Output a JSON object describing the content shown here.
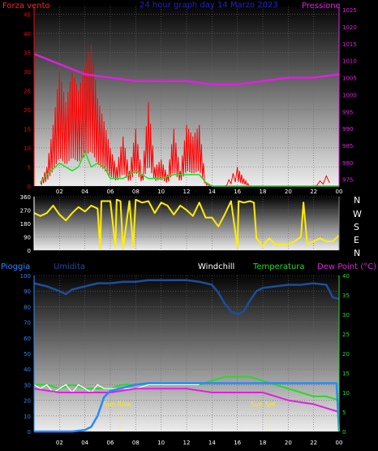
{
  "header": {
    "wind_label": "Forza vento",
    "title": "24 hour graph day  14 Marzo 2023",
    "pressure_label": "Pressione",
    "rain_label": "Pioggia",
    "humidity_label": "Umidita",
    "windchill_label": "Windchill",
    "temperature_label": "Temperatura",
    "dewpoint_label": "Dew Point (°C)",
    "compass": [
      "N",
      "W",
      "S",
      "E",
      "N"
    ]
  },
  "annotations": {
    "sunrise": "Sun Rise",
    "sunset": "Sun Set"
  },
  "colors": {
    "wind_gust": "#ff0000",
    "wind_avg": "#22dd22",
    "pressure": "#e020e0",
    "direction": "#ffee00",
    "rain": "#2a88ff",
    "humidity": "#1c4e9c",
    "temperature": "#22dd22",
    "windchill": "#ffffff",
    "dewpoint": "#e020e0",
    "title": "#2222cc"
  },
  "chart_data": [
    {
      "type": "line",
      "title": "24 hour graph day  14 Marzo 2023",
      "x_ticks": [
        "02",
        "04",
        "06",
        "08",
        "10",
        "12",
        "14",
        "16",
        "18",
        "20",
        "22",
        "00"
      ],
      "xlim": [
        0,
        24
      ],
      "ylabel": "Forza vento",
      "ylim": [
        0,
        47
      ],
      "y_ticks": [
        0,
        5,
        10,
        15,
        20,
        25,
        30,
        35,
        40,
        45
      ],
      "y2label": "Pressione",
      "y2lim": [
        973,
        1026
      ],
      "y2_ticks": [
        975,
        980,
        985,
        990,
        995,
        1000,
        1005,
        1010,
        1015,
        1020,
        1025
      ],
      "series": [
        {
          "name": "Forza vento",
          "kind": "gust",
          "x": [
            0.5,
            1,
            1.5,
            2,
            2.5,
            3,
            3.5,
            4,
            4.5,
            5,
            5.5,
            6,
            6.5,
            7,
            7.5,
            8,
            8.5,
            9,
            9.5,
            10,
            10.5,
            11,
            11.5,
            12,
            12.5,
            13,
            13.5,
            14,
            15,
            16,
            16.5,
            17,
            18,
            20,
            22,
            23.5
          ],
          "y": [
            1,
            5,
            16,
            30,
            22,
            30,
            25,
            31,
            37,
            23,
            17,
            10,
            5,
            13,
            4,
            15,
            3,
            22,
            5,
            7,
            3,
            15,
            4,
            16,
            13,
            16,
            1,
            0,
            0,
            5,
            2,
            0,
            0,
            0,
            0,
            4
          ]
        },
        {
          "name": "avg",
          "kind": "avg",
          "x": [
            0.5,
            1,
            2,
            3,
            3.5,
            4,
            4.5,
            5,
            5.5,
            6,
            7,
            8,
            9,
            10,
            11,
            12,
            13,
            13.5,
            14,
            24
          ],
          "y": [
            1,
            3,
            6,
            4,
            5,
            9,
            5,
            6,
            5,
            2,
            2,
            4,
            2,
            2,
            3,
            3,
            3,
            1,
            0,
            0
          ]
        },
        {
          "name": "Pressione",
          "axis": "y2",
          "x": [
            0,
            2,
            4,
            6,
            8,
            10,
            12,
            14,
            16,
            18,
            20,
            22,
            24
          ],
          "y": [
            1012,
            1009,
            1006,
            1005,
            1004,
            1004,
            1004,
            1003,
            1003,
            1004,
            1005,
            1005,
            1006
          ]
        }
      ]
    },
    {
      "type": "line",
      "xlim": [
        0,
        24
      ],
      "ylim": [
        0,
        360
      ],
      "y_ticks": [
        0,
        90,
        180,
        270,
        360
      ],
      "series": [
        {
          "name": "direction",
          "x": [
            0,
            0.5,
            1,
            1.5,
            2,
            2.5,
            3,
            3.5,
            4,
            4.5,
            5,
            5.2,
            5.3,
            6,
            6.4,
            6.5,
            6.8,
            7,
            7.5,
            7.8,
            8,
            8.5,
            9,
            9.5,
            10,
            10.5,
            11,
            11.5,
            12,
            12.5,
            13,
            13.5,
            14,
            14.5,
            15,
            15.5,
            16,
            16.1,
            16.5,
            17,
            17.3,
            17.5,
            18,
            18.5,
            19,
            19.5,
            20,
            20.5,
            21,
            21.2,
            21.5,
            22,
            22.5,
            23,
            23.5,
            24
          ],
          "y": [
            250,
            230,
            250,
            300,
            240,
            200,
            250,
            290,
            260,
            300,
            280,
            10,
            330,
            330,
            20,
            340,
            330,
            10,
            330,
            20,
            340,
            320,
            330,
            250,
            320,
            300,
            240,
            300,
            270,
            230,
            320,
            220,
            220,
            160,
            240,
            330,
            20,
            330,
            320,
            330,
            320,
            80,
            30,
            80,
            40,
            40,
            40,
            60,
            90,
            320,
            40,
            60,
            80,
            60,
            60,
            100
          ]
        }
      ]
    },
    {
      "type": "line",
      "xlim": [
        0,
        24
      ],
      "ylabel": "Pioggia / Umidita",
      "ylim": [
        0,
        100
      ],
      "y_ticks": [
        0,
        10,
        20,
        30,
        40,
        50,
        60,
        70,
        80,
        90,
        100
      ],
      "y2label": "Dew Point (°C)",
      "y2lim": [
        0,
        40
      ],
      "y2_ticks": [
        0,
        5,
        10,
        15,
        20,
        25,
        30,
        35,
        40
      ],
      "series": [
        {
          "name": "Pioggia",
          "axis": "y",
          "x": [
            0,
            1,
            2,
            3,
            4,
            4.5,
            5,
            5.5,
            6,
            7,
            8,
            9,
            10,
            11,
            12,
            13,
            14,
            16,
            18,
            20,
            22,
            23.8,
            24
          ],
          "y": [
            0,
            0,
            0,
            0,
            1,
            3,
            10,
            22,
            26,
            28,
            30,
            31,
            31,
            31,
            31,
            31,
            31,
            31,
            31,
            31,
            31,
            31,
            0
          ]
        },
        {
          "name": "Umidita",
          "axis": "y",
          "x": [
            0,
            1,
            2,
            2.5,
            3,
            4,
            5,
            6,
            7,
            8,
            9,
            10,
            11,
            12,
            13,
            14,
            14.5,
            15,
            15.5,
            16,
            16.5,
            17,
            17.5,
            18,
            19,
            20,
            21,
            22,
            23,
            23.5,
            24
          ],
          "y": [
            95,
            93,
            90,
            88,
            91,
            93,
            95,
            95,
            96,
            96,
            97,
            97,
            97,
            97,
            96,
            94,
            89,
            82,
            77,
            75,
            77,
            84,
            90,
            92,
            93,
            94,
            94,
            95,
            94,
            86,
            85
          ]
        },
        {
          "name": "Temperatura",
          "axis": "y2",
          "x": [
            0,
            1,
            2,
            3,
            4,
            5,
            6,
            7,
            8,
            9,
            10,
            11,
            12,
            13,
            14,
            15,
            16,
            17,
            18,
            19,
            20,
            21,
            22,
            23,
            24
          ],
          "y": [
            12,
            12,
            11,
            12,
            11,
            11,
            11,
            12,
            12,
            12,
            12,
            12,
            12,
            12,
            13,
            14,
            14,
            14,
            13,
            12,
            11,
            10,
            9,
            9,
            8
          ]
        },
        {
          "name": "Windchill",
          "axis": "y2",
          "x": [
            0,
            0.5,
            1,
            1.5,
            2,
            2.5,
            3,
            3.5,
            4,
            4.5,
            5,
            5.5,
            6,
            7,
            8,
            9,
            10,
            11,
            12,
            13
          ],
          "y": [
            12,
            11,
            12,
            10,
            11,
            12,
            10,
            12,
            11,
            10,
            12,
            11,
            11,
            11,
            11,
            12,
            12,
            12,
            12,
            12
          ]
        },
        {
          "name": "Dew Point",
          "axis": "y2",
          "x": [
            0,
            2,
            4,
            6,
            8,
            10,
            12,
            14,
            16,
            18,
            20,
            22,
            24
          ],
          "y": [
            11,
            10,
            10,
            10,
            11,
            11,
            11,
            10,
            10,
            10,
            8,
            7,
            5
          ]
        }
      ]
    }
  ]
}
